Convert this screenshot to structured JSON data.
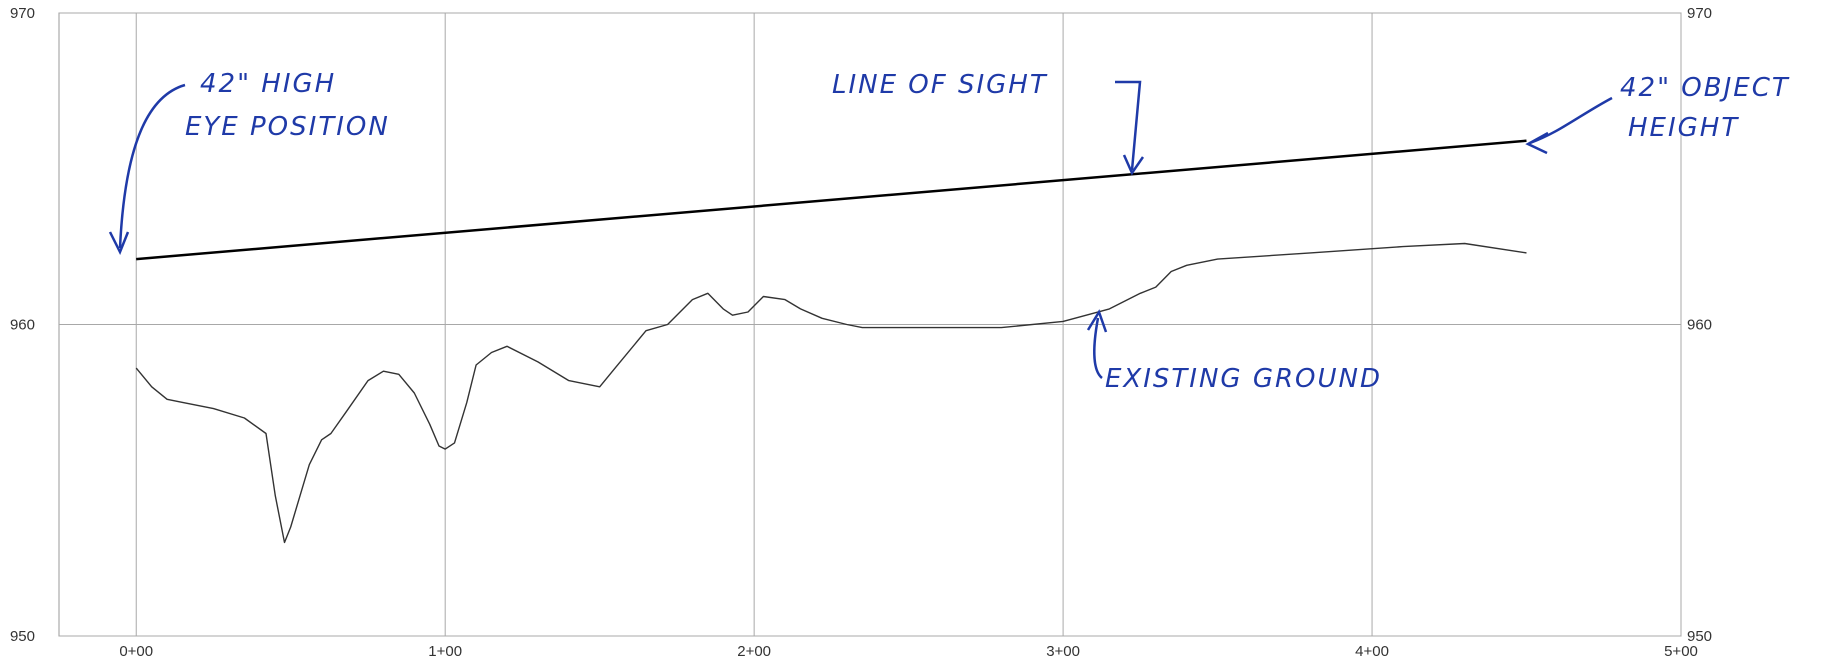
{
  "chart_data": {
    "type": "line",
    "x_ticks": [
      {
        "value": 0,
        "label": "0+00"
      },
      {
        "value": 100,
        "label": "1+00"
      },
      {
        "value": 200,
        "label": "2+00"
      },
      {
        "value": 300,
        "label": "3+00"
      },
      {
        "value": 400,
        "label": "4+00"
      },
      {
        "value": 500,
        "label": "5+00"
      }
    ],
    "y_ticks": [
      {
        "value": 950,
        "label": "950"
      },
      {
        "value": 960,
        "label": "960"
      },
      {
        "value": 970,
        "label": "970"
      }
    ],
    "xlim": [
      -25,
      500
    ],
    "ylim": [
      950,
      970
    ],
    "grid": true,
    "series": [
      {
        "id": "line-of-sight",
        "color": "#000000",
        "x": [
          0,
          450
        ],
        "y": [
          962.1,
          965.9
        ]
      },
      {
        "id": "existing-ground",
        "color": "#333333",
        "x": [
          0,
          5,
          10,
          15,
          25,
          35,
          42,
          45,
          48,
          50,
          53,
          56,
          60,
          63,
          68,
          75,
          80,
          85,
          90,
          95,
          98,
          100,
          103,
          107,
          110,
          115,
          120,
          130,
          140,
          150,
          155,
          165,
          172,
          180,
          185,
          190,
          193,
          198,
          203,
          210,
          215,
          222,
          230,
          235,
          245,
          260,
          280,
          300,
          315,
          325,
          330,
          335,
          340,
          350,
          380,
          410,
          430,
          450
        ],
        "y": [
          958.6,
          958.0,
          957.6,
          957.5,
          957.3,
          957.0,
          956.5,
          954.5,
          953.0,
          953.5,
          954.5,
          955.5,
          956.3,
          956.5,
          957.2,
          958.2,
          958.5,
          958.4,
          957.8,
          956.8,
          956.1,
          956.0,
          956.2,
          957.5,
          958.7,
          959.1,
          959.3,
          958.8,
          958.2,
          958.0,
          958.6,
          959.8,
          960.0,
          960.8,
          961.0,
          960.5,
          960.3,
          960.4,
          960.9,
          960.8,
          960.5,
          960.2,
          960.0,
          959.9,
          959.9,
          959.9,
          959.9,
          960.1,
          960.5,
          961.0,
          961.2,
          961.7,
          961.9,
          962.1,
          962.3,
          962.5,
          962.6,
          962.3
        ]
      }
    ],
    "annotations": [
      {
        "lines": [
          "42\" HIGH",
          "EYE POSITION"
        ]
      },
      {
        "lines": [
          "LINE OF SIGHT"
        ]
      },
      {
        "lines": [
          "42\" OBJECT",
          "HEIGHT"
        ]
      },
      {
        "lines": [
          "EXISTING GROUND"
        ]
      }
    ]
  }
}
